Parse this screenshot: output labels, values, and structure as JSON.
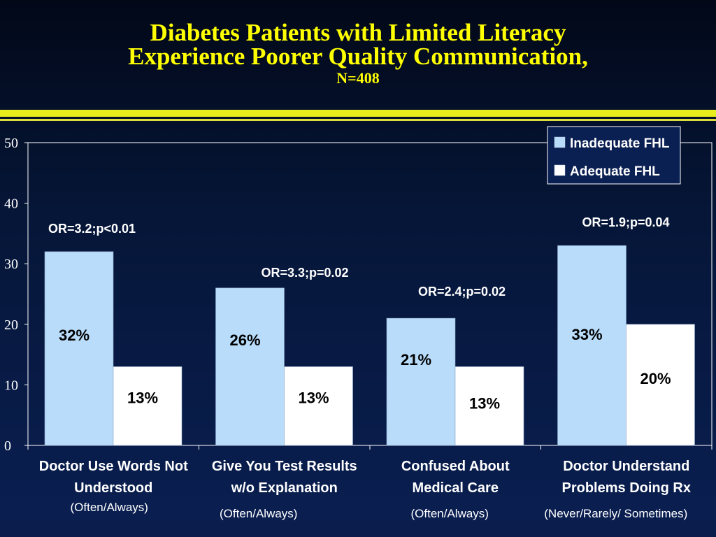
{
  "slide": {
    "title_line1": "Diabetes Patients with Limited Literacy",
    "title_line2": "Experience Poorer Quality Communication,",
    "title_line3": "N=408"
  },
  "colors": {
    "title": "#ffff00",
    "inadequate": "#b8dcfa",
    "adequate": "#ffffff",
    "background": "#0a1f52"
  },
  "chart_data": {
    "type": "bar",
    "categories": [
      "Doctor Use Words   Not Understood",
      "Give You Test Results w/o Explanation",
      "Confused About Medical Care",
      "Doctor Understand Problems Doing Rx"
    ],
    "category_lines": [
      [
        "Doctor Use Words   Not",
        "Understood"
      ],
      [
        "Give You Test Results",
        "w/o Explanation"
      ],
      [
        "Confused About",
        "Medical Care"
      ],
      [
        "Doctor Understand",
        "Problems Doing Rx"
      ]
    ],
    "category_notes": [
      "(Often/Always)",
      "(Often/Always)",
      "(Often/Always)",
      "(Never/Rarely/ Sometimes)"
    ],
    "series": [
      {
        "name": "Inadequate FHL",
        "values": [
          32,
          26,
          21,
          33
        ],
        "labels": [
          "32%",
          "26%",
          "21%",
          "33%"
        ]
      },
      {
        "name": "Adequate FHL",
        "values": [
          13,
          13,
          13,
          20
        ],
        "labels": [
          "13%",
          "13%",
          "13%",
          "20%"
        ]
      }
    ],
    "annotations": [
      "OR=3.2;p<0.01",
      "OR=3.3;p=0.02",
      "OR=2.4;p=0.02",
      "OR=1.9;p=0.04"
    ],
    "yticks": [
      "0",
      "10",
      "20",
      "30",
      "40",
      "50"
    ],
    "ylim": [
      0,
      50
    ],
    "grid": false,
    "legend_position": "top-right"
  }
}
